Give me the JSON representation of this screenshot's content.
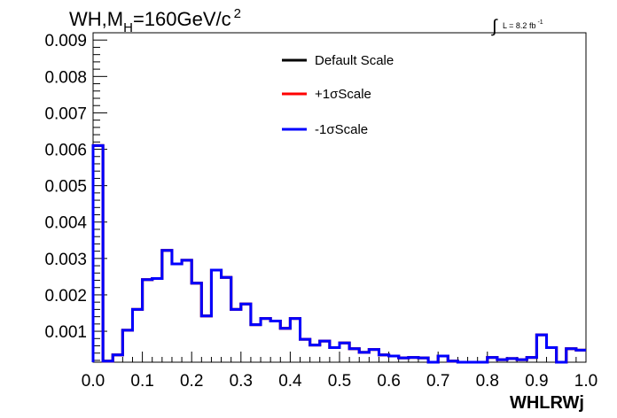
{
  "chart_data": {
    "type": "line",
    "step": true,
    "title": "WH,M_H=160GeV/c^2",
    "title_parts": {
      "main": "WH,M",
      "sub": "H",
      "rest": "=160GeV/c",
      "sup": "2"
    },
    "luminosity_label": {
      "integral": "∫",
      "text": "L = 8.2 fb",
      "sup": "-1"
    },
    "xlabel": "WHLRWj",
    "ylabel": "",
    "xlim": [
      0,
      1
    ],
    "ylim": [
      0.00015,
      0.0092
    ],
    "x_ticks": [
      0.0,
      0.1,
      0.2,
      0.3,
      0.4,
      0.5,
      0.6,
      0.7,
      0.8,
      0.9,
      1.0
    ],
    "x_tick_labels": [
      "0.0",
      "0.1",
      "0.2",
      "0.3",
      "0.4",
      "0.5",
      "0.6",
      "0.7",
      "0.8",
      "0.9",
      "1.0"
    ],
    "y_ticks": [
      0.001,
      0.002,
      0.003,
      0.004,
      0.005,
      0.006,
      0.007,
      0.008,
      0.009
    ],
    "y_tick_labels": [
      "0.001",
      "0.002",
      "0.003",
      "0.004",
      "0.005",
      "0.006",
      "0.007",
      "0.008",
      "0.009"
    ],
    "legend": {
      "placement": "top-center"
    },
    "bin_edges": [
      0.0,
      0.02,
      0.04,
      0.06,
      0.08,
      0.1,
      0.12,
      0.14,
      0.16,
      0.18,
      0.2,
      0.22,
      0.24,
      0.26,
      0.28,
      0.3,
      0.32,
      0.34,
      0.36,
      0.38,
      0.4,
      0.42,
      0.44,
      0.46,
      0.48,
      0.5,
      0.52,
      0.54,
      0.56,
      0.58,
      0.6,
      0.62,
      0.64,
      0.66,
      0.68,
      0.7,
      0.72,
      0.74,
      0.76,
      0.78,
      0.8,
      0.82,
      0.84,
      0.86,
      0.88,
      0.9,
      0.92,
      0.94,
      0.96,
      0.98,
      1.0
    ],
    "series": [
      {
        "name": "Default Scale",
        "color": "#000000",
        "values": [
          0.0061,
          0.00018,
          0.00035,
          0.00103,
          0.0016,
          0.00242,
          0.00245,
          0.00322,
          0.00285,
          0.00295,
          0.00232,
          0.00142,
          0.00268,
          0.00248,
          0.0016,
          0.00175,
          0.00118,
          0.00135,
          0.00128,
          0.00108,
          0.00135,
          0.00078,
          0.00062,
          0.00073,
          0.00055,
          0.00068,
          0.00052,
          0.00042,
          0.0005,
          0.00035,
          0.00032,
          0.00027,
          0.00028,
          0.00027,
          0.0001,
          0.00032,
          0.00018,
          0.00012,
          0.0001,
          0.00013,
          0.00028,
          0.00022,
          0.00025,
          0.00022,
          0.00028,
          0.0009,
          0.00055,
          0.00015,
          0.00052,
          0.00048
        ]
      },
      {
        "name": "+1σScale",
        "color": "#ff0000",
        "values": [
          0.0061,
          0.00018,
          0.00035,
          0.00103,
          0.0016,
          0.00242,
          0.00245,
          0.00322,
          0.00285,
          0.00295,
          0.00232,
          0.00142,
          0.00268,
          0.00248,
          0.0016,
          0.00175,
          0.00118,
          0.00135,
          0.00128,
          0.00108,
          0.00135,
          0.00078,
          0.00062,
          0.00073,
          0.00055,
          0.00068,
          0.00052,
          0.00042,
          0.0005,
          0.00035,
          0.00032,
          0.00027,
          0.00028,
          0.00027,
          0.0001,
          0.00032,
          0.00018,
          0.00012,
          0.0001,
          0.00013,
          0.00028,
          0.00022,
          0.00025,
          0.00022,
          0.00028,
          0.0009,
          0.00055,
          0.00015,
          0.00052,
          0.00048
        ]
      },
      {
        "name": "-1σScale",
        "color": "#0000ff",
        "values": [
          0.0061,
          0.00018,
          0.00035,
          0.00103,
          0.0016,
          0.00242,
          0.00245,
          0.00322,
          0.00285,
          0.00295,
          0.00232,
          0.00142,
          0.00268,
          0.00248,
          0.0016,
          0.00175,
          0.00118,
          0.00135,
          0.00128,
          0.00108,
          0.00135,
          0.00078,
          0.00062,
          0.00073,
          0.00055,
          0.00068,
          0.00052,
          0.00042,
          0.0005,
          0.00035,
          0.00032,
          0.00027,
          0.00028,
          0.00027,
          0.0001,
          0.00032,
          0.00018,
          0.00012,
          0.0001,
          0.00013,
          0.00028,
          0.00022,
          0.00025,
          0.00022,
          0.00028,
          0.0009,
          0.00055,
          0.00015,
          0.00052,
          0.00048
        ]
      }
    ]
  }
}
